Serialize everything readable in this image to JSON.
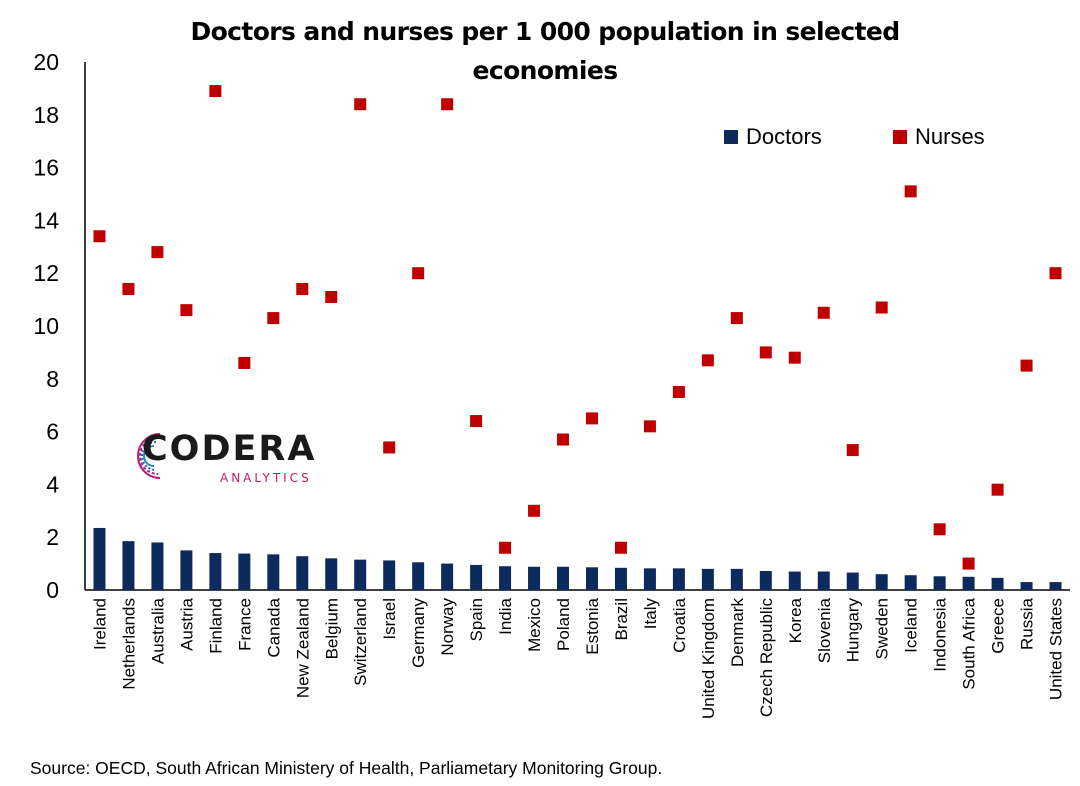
{
  "chart_data": {
    "type": "bar",
    "title": "Doctors and nurses per 1 000 population in selected economies",
    "title_lines": [
      "Doctors and nurses per 1 000 population in selected",
      "economies"
    ],
    "categories": [
      "Ireland",
      "Netherlands",
      "Australia",
      "Austria",
      "Finland",
      "France",
      "Canada",
      "New Zealand",
      "Belgium",
      "Switzerland",
      "Israel",
      "Germany",
      "Norway",
      "Spain",
      "India",
      "Mexico",
      "Poland",
      "Estonia",
      "Brazil",
      "Italy",
      "Croatia",
      "United Kingdom",
      "Denmark",
      "Czech Republic",
      "Korea",
      "Slovenia",
      "Hungary",
      "Sweden",
      "Iceland",
      "Indonesia",
      "South Africa",
      "Greece",
      "Russia",
      "United States"
    ],
    "series": [
      {
        "name": "Doctors",
        "mark": "bar",
        "color": "#0d2a5c",
        "values": [
          2.35,
          1.85,
          1.8,
          1.5,
          1.4,
          1.38,
          1.35,
          1.28,
          1.2,
          1.15,
          1.12,
          1.05,
          1.0,
          0.95,
          0.9,
          0.88,
          0.88,
          0.86,
          0.84,
          0.82,
          0.82,
          0.8,
          0.8,
          0.72,
          0.7,
          0.7,
          0.66,
          0.6,
          0.56,
          0.52,
          0.5,
          0.46,
          0.3,
          0.3
        ]
      },
      {
        "name": "Nurses",
        "mark": "square",
        "color": "#c00000",
        "values": [
          13.4,
          11.4,
          12.8,
          10.6,
          18.9,
          8.6,
          10.3,
          11.4,
          11.1,
          18.4,
          5.4,
          12.0,
          18.4,
          6.4,
          1.6,
          3.0,
          5.7,
          6.5,
          1.6,
          6.2,
          7.5,
          8.7,
          10.3,
          9.0,
          8.8,
          10.5,
          5.3,
          10.7,
          15.1,
          2.3,
          1.0,
          3.8,
          8.5,
          12.0
        ]
      }
    ],
    "yticks": [
      "0",
      "2",
      "4",
      "6",
      "8",
      "10",
      "12",
      "14",
      "16",
      "18",
      "20"
    ],
    "ylim": [
      0,
      20
    ],
    "xlabel": "",
    "ylabel": "",
    "grid": false,
    "legend": "top-right"
  },
  "source": "Source: OECD, South African Ministery of Health, Parliametary Monitoring Group.",
  "logo": {
    "word": "CODERA",
    "subtitle": "ANALYTICS"
  }
}
